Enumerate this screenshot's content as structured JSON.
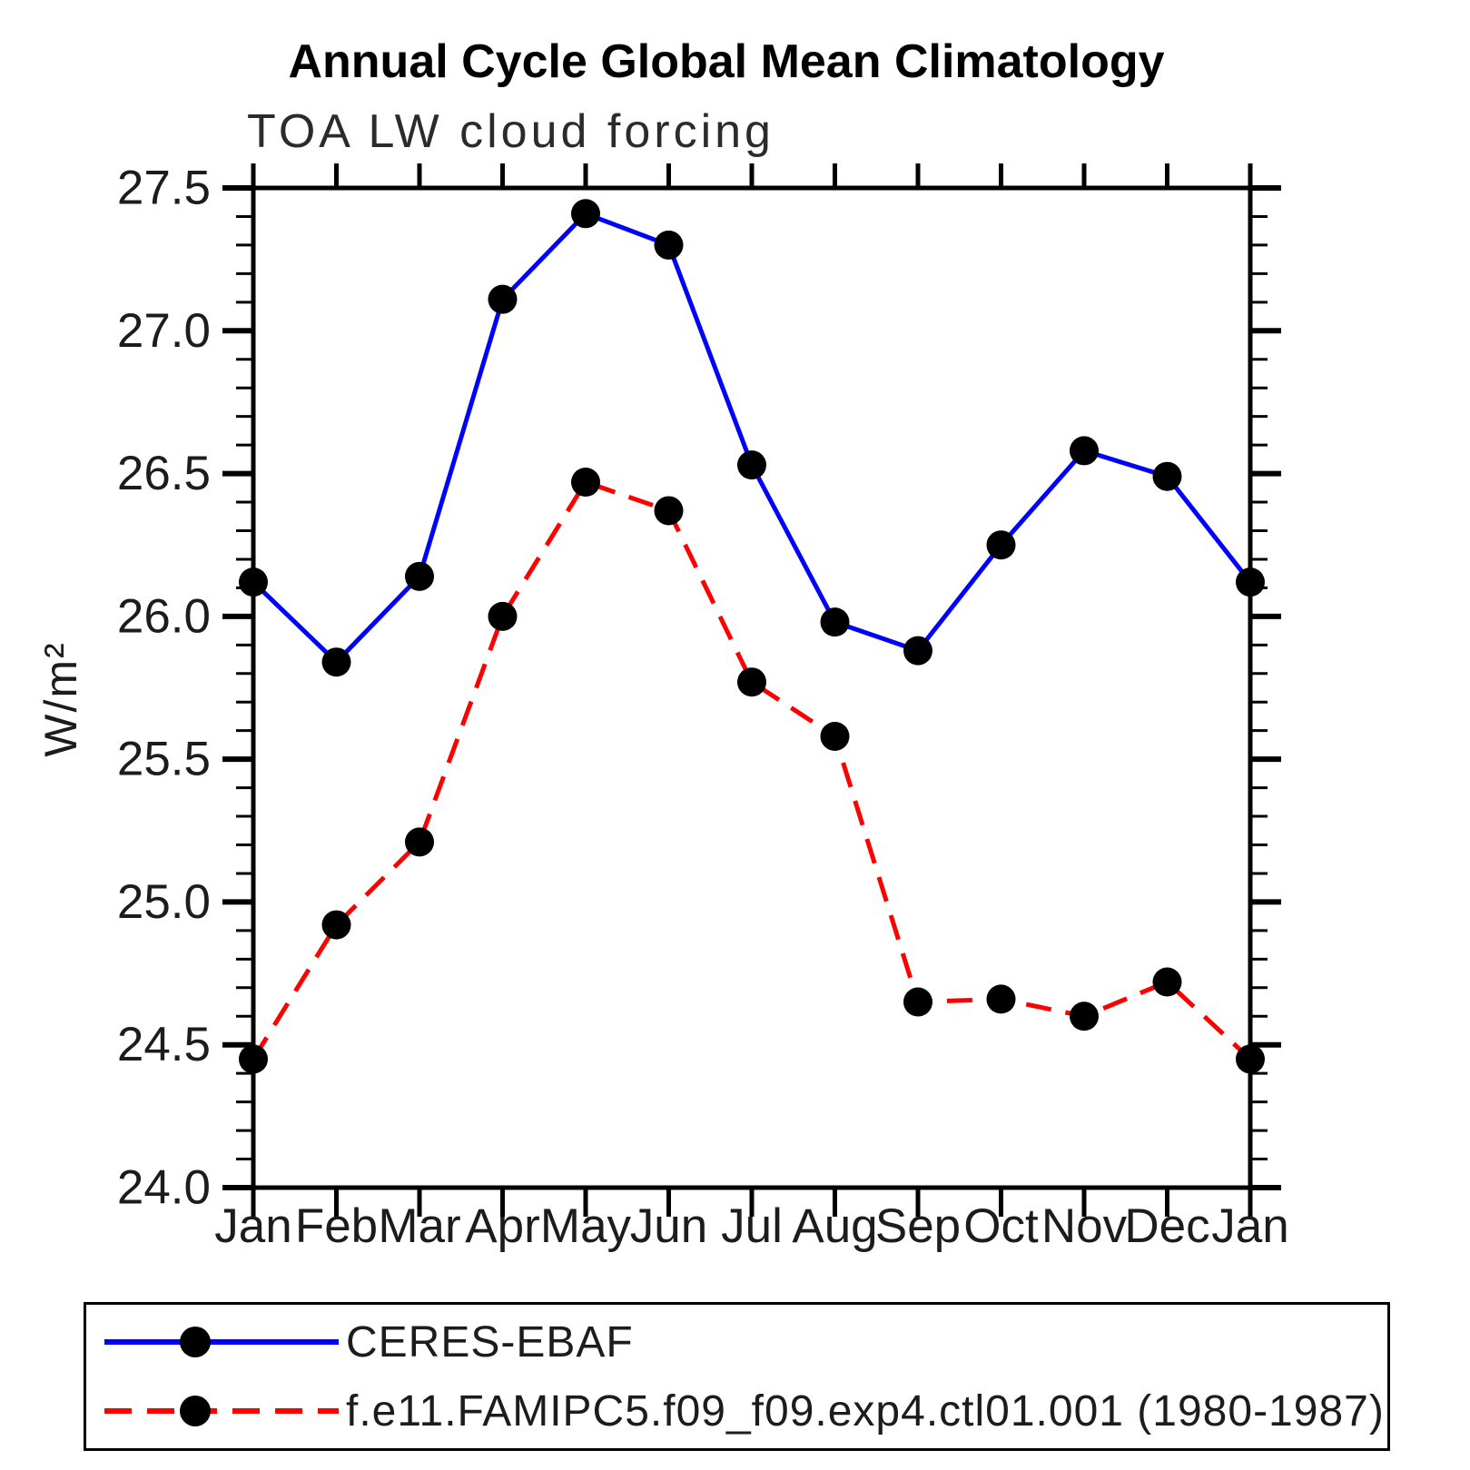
{
  "chart_data": {
    "type": "line",
    "title": "Annual Cycle Global Mean Climatology",
    "subtitle": "TOA LW cloud forcing",
    "ylabel": "W/m²",
    "xlabel": "",
    "categories": [
      "Jan",
      "Feb",
      "Mar",
      "Apr",
      "May",
      "Jun",
      "Jul",
      "Aug",
      "Sep",
      "Oct",
      "Nov",
      "Dec",
      "Jan"
    ],
    "ylim": [
      24.0,
      27.5
    ],
    "ytick_labels": [
      "24.0",
      "24.5",
      "25.0",
      "25.5",
      "26.0",
      "26.5",
      "27.0",
      "27.5"
    ],
    "ytick_minor_step": 0.1,
    "grid": "off",
    "legend_position": "bottom-left-box",
    "series": [
      {
        "name": "CERES-EBAF",
        "color": "#0000ff",
        "line_style": "solid",
        "marker": "circle",
        "marker_color": "#000000",
        "values": [
          26.12,
          25.84,
          26.14,
          27.11,
          27.41,
          27.3,
          26.53,
          25.98,
          25.88,
          26.25,
          26.58,
          26.49,
          26.12
        ]
      },
      {
        "name": "f.e11.FAMIPC5.f09_f09.exp4.ctl01.001 (1980-1987)",
        "color": "#ff0000",
        "line_style": "dashed",
        "marker": "circle",
        "marker_color": "#000000",
        "values": [
          24.45,
          24.92,
          25.21,
          26.0,
          26.47,
          26.37,
          25.77,
          25.58,
          24.65,
          24.66,
          24.6,
          24.72,
          24.45
        ]
      }
    ]
  }
}
